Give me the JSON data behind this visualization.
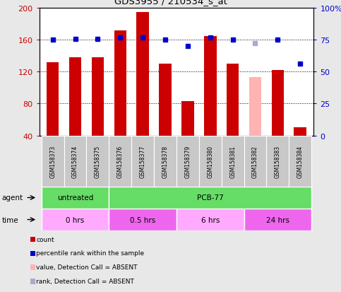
{
  "title": "GDS3955 / 210534_s_at",
  "samples": [
    "GSM158373",
    "GSM158374",
    "GSM158375",
    "GSM158376",
    "GSM158377",
    "GSM158378",
    "GSM158379",
    "GSM158380",
    "GSM158381",
    "GSM158382",
    "GSM158383",
    "GSM158384"
  ],
  "bar_values": [
    132,
    138,
    138,
    172,
    195,
    130,
    83,
    165,
    130,
    null,
    122,
    50
  ],
  "bar_absent_values": [
    null,
    null,
    null,
    null,
    null,
    null,
    null,
    null,
    null,
    113,
    null,
    null
  ],
  "bar_color_normal": "#cc0000",
  "bar_color_absent": "#ffb3b3",
  "rank_values": [
    160,
    161,
    161,
    163,
    163,
    160,
    152,
    163,
    160,
    null,
    160,
    130
  ],
  "rank_absent_values": [
    null,
    null,
    null,
    null,
    null,
    null,
    null,
    null,
    null,
    156,
    null,
    null
  ],
  "rank_color_normal": "#0000cc",
  "rank_color_absent": "#aaaacc",
  "ylim_left": [
    40,
    200
  ],
  "ylim_right": [
    0,
    100
  ],
  "yticks_left": [
    40,
    80,
    120,
    160,
    200
  ],
  "yticks_right": [
    0,
    25,
    50,
    75,
    100
  ],
  "ytick_labels_right": [
    "0",
    "25",
    "50",
    "75",
    "100%"
  ],
  "agent_groups": [
    {
      "label": "untreated",
      "start": 0,
      "end": 3,
      "color": "#66dd66"
    },
    {
      "label": "PCB-77",
      "start": 3,
      "end": 12,
      "color": "#66dd66"
    }
  ],
  "time_groups": [
    {
      "label": "0 hrs",
      "start": 0,
      "end": 3,
      "color": "#ffaaff"
    },
    {
      "label": "0.5 hrs",
      "start": 3,
      "end": 6,
      "color": "#ee66ee"
    },
    {
      "label": "6 hrs",
      "start": 6,
      "end": 9,
      "color": "#ffaaff"
    },
    {
      "label": "24 hrs",
      "start": 9,
      "end": 12,
      "color": "#ee66ee"
    }
  ],
  "bg_color": "#e8e8e8",
  "plot_bg": "#ffffff",
  "sample_box_color": "#c8c8c8",
  "bar_width": 0.55,
  "left_tick_color": "#cc0000",
  "right_tick_color": "#0000cc",
  "marker_size": 5
}
